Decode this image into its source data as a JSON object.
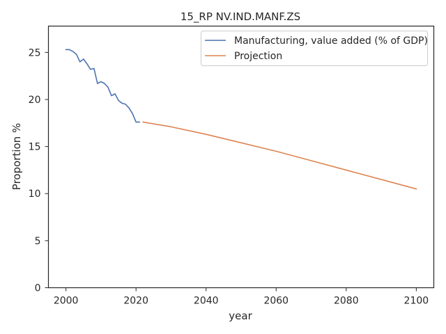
{
  "chart_data": {
    "type": "line",
    "title": "15_RP NV.IND.MANF.ZS",
    "xlabel": "year",
    "ylabel": "Proportion %",
    "xlim": [
      1995,
      2105
    ],
    "ylim": [
      0,
      27.8
    ],
    "xticks": [
      2000,
      2020,
      2040,
      2060,
      2080,
      2100
    ],
    "yticks": [
      0,
      5,
      10,
      15,
      20,
      25
    ],
    "grid": false,
    "legend_position": "top-right",
    "series": [
      {
        "name": "Manufacturing, value added (% of GDP)",
        "color": "#4c72b0",
        "x": [
          2000,
          2001,
          2002,
          2003,
          2004,
          2005,
          2006,
          2007,
          2008,
          2009,
          2010,
          2011,
          2012,
          2013,
          2014,
          2015,
          2016,
          2017,
          2018,
          2019,
          2020,
          2021
        ],
        "y": [
          25.3,
          25.3,
          25.1,
          24.8,
          24.0,
          24.3,
          23.8,
          23.2,
          23.3,
          21.7,
          21.9,
          21.7,
          21.3,
          20.4,
          20.6,
          19.9,
          19.6,
          19.5,
          19.1,
          18.5,
          17.6,
          17.6
        ]
      },
      {
        "name": "Projection",
        "color": "#dd8452",
        "x": [
          2022,
          2030,
          2040,
          2050,
          2060,
          2070,
          2080,
          2090,
          2100
        ],
        "y": [
          17.6,
          17.1,
          16.3,
          15.4,
          14.5,
          13.5,
          12.5,
          11.5,
          10.5
        ]
      }
    ]
  }
}
